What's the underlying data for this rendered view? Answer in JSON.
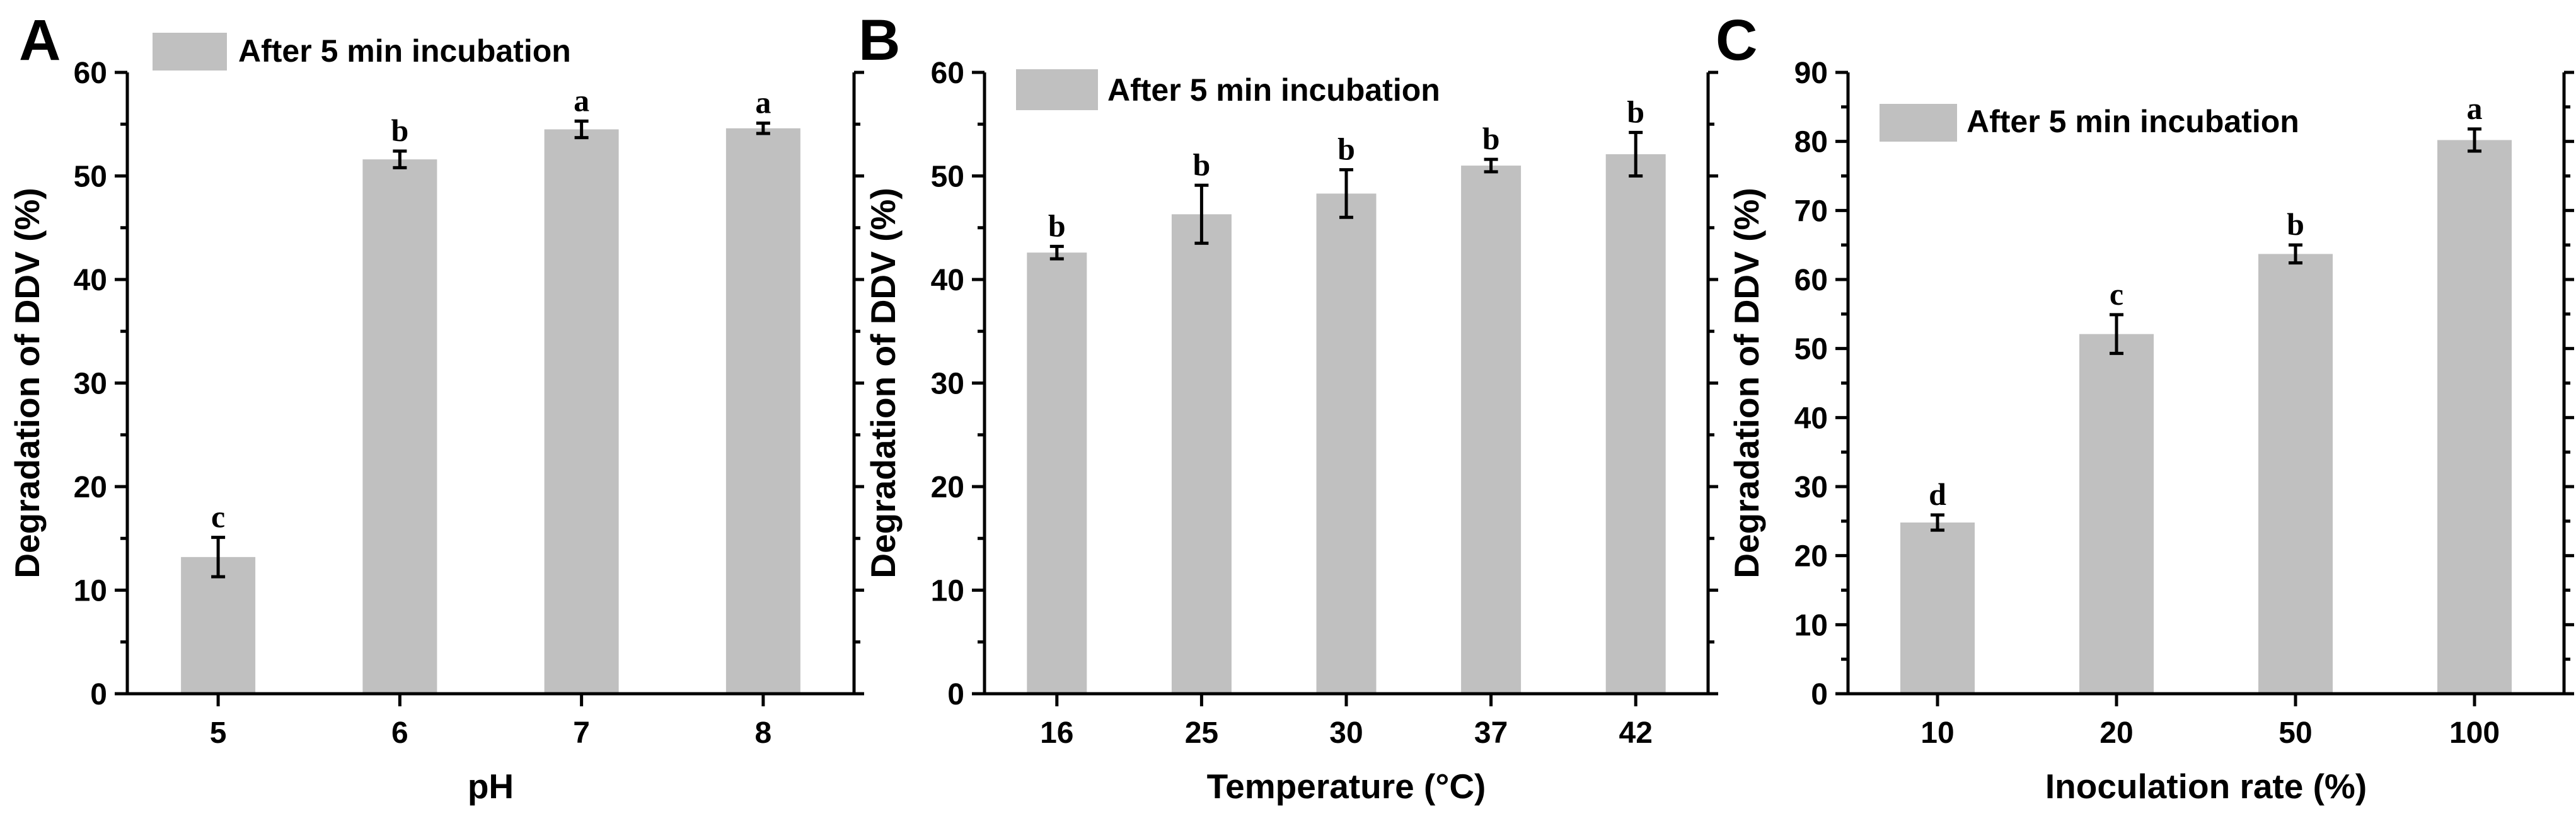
{
  "colors": {
    "bar": "#c0c0c0",
    "axis": "#000000",
    "error": "#000000"
  },
  "chart_data": [
    {
      "panel": "A",
      "type": "bar",
      "legend": "After 5 min incubation",
      "legend_position": "top-left",
      "xlabel": "pH",
      "ylabel": "Degradation of DDV (%)",
      "ylim": [
        0,
        60
      ],
      "yticks": [
        "0",
        "10",
        "20",
        "30",
        "40",
        "50",
        "60"
      ],
      "categories": [
        "5",
        "6",
        "7",
        "8"
      ],
      "values": [
        13.2,
        51.6,
        54.5,
        54.6
      ],
      "errors": [
        1.9,
        0.8,
        0.8,
        0.5
      ],
      "significance": [
        "c",
        "b",
        "a",
        "a"
      ]
    },
    {
      "panel": "B",
      "type": "bar",
      "legend": "After 5 min incubation",
      "legend_position": "top-left",
      "xlabel": "Temperature (°C)",
      "ylabel": "Degradation of DDV (%)",
      "ylim": [
        0,
        60
      ],
      "yticks": [
        "0",
        "10",
        "20",
        "30",
        "40",
        "50",
        "60"
      ],
      "categories": [
        "16",
        "25",
        "30",
        "37",
        "42"
      ],
      "values": [
        42.6,
        46.3,
        48.3,
        51.0,
        52.1
      ],
      "errors": [
        0.6,
        2.8,
        2.3,
        0.6,
        2.1
      ],
      "significance": [
        "b",
        "b",
        "b",
        "b",
        "b"
      ]
    },
    {
      "panel": "C",
      "type": "bar",
      "legend": "After 5 min incubation",
      "legend_position": "top-left",
      "xlabel": "Inoculation rate  (%)",
      "ylabel": "Degradation of DDV (%)",
      "ylim": [
        0,
        90
      ],
      "yticks": [
        "0",
        "10",
        "20",
        "30",
        "40",
        "50",
        "60",
        "70",
        "80",
        "90"
      ],
      "categories": [
        "10",
        "20",
        "50",
        "100"
      ],
      "values": [
        24.8,
        52.1,
        63.7,
        80.2
      ],
      "errors": [
        1.1,
        2.8,
        1.3,
        1.6
      ],
      "significance": [
        "d",
        "c",
        "b",
        "a"
      ]
    }
  ]
}
